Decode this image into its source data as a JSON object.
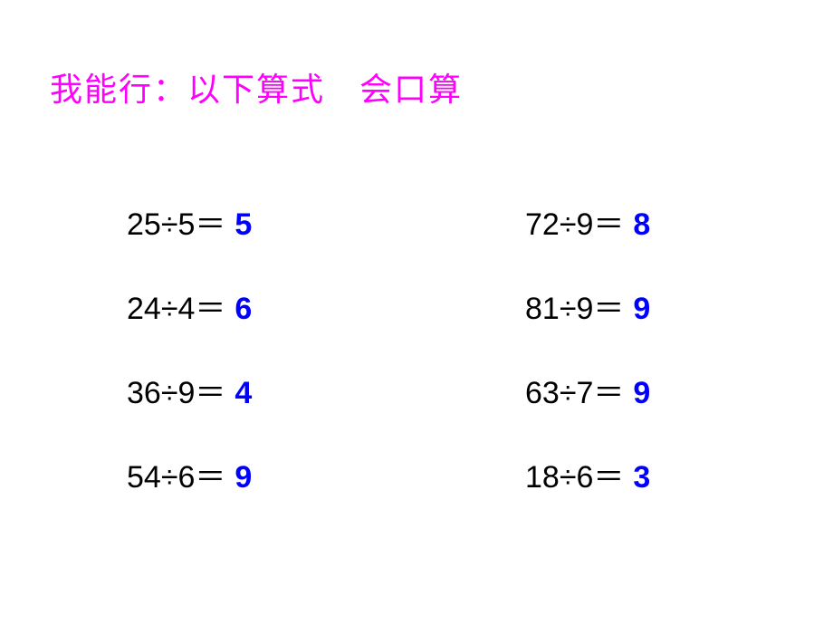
{
  "title": "我能行：以下算式　会口算",
  "colors": {
    "title": "#ff00ff",
    "expression": "#000000",
    "answer": "#0000ff",
    "background": "#ffffff"
  },
  "typography": {
    "title_fontsize": 36,
    "problem_fontsize": 34,
    "answer_fontweight": "bold"
  },
  "layout": {
    "columns": 2,
    "rows": 4,
    "row_gap": 44
  },
  "problems": [
    {
      "expr": "25÷5＝",
      "answer": "5"
    },
    {
      "expr": "72÷9＝",
      "answer": "8"
    },
    {
      "expr": "24÷4＝",
      "answer": "6"
    },
    {
      "expr": "81÷9＝",
      "answer": "9"
    },
    {
      "expr": "36÷9＝",
      "answer": "4"
    },
    {
      "expr": "63÷7＝",
      "answer": "9"
    },
    {
      "expr": "54÷6＝",
      "answer": "9"
    },
    {
      "expr": "18÷6＝",
      "answer": "3"
    }
  ]
}
